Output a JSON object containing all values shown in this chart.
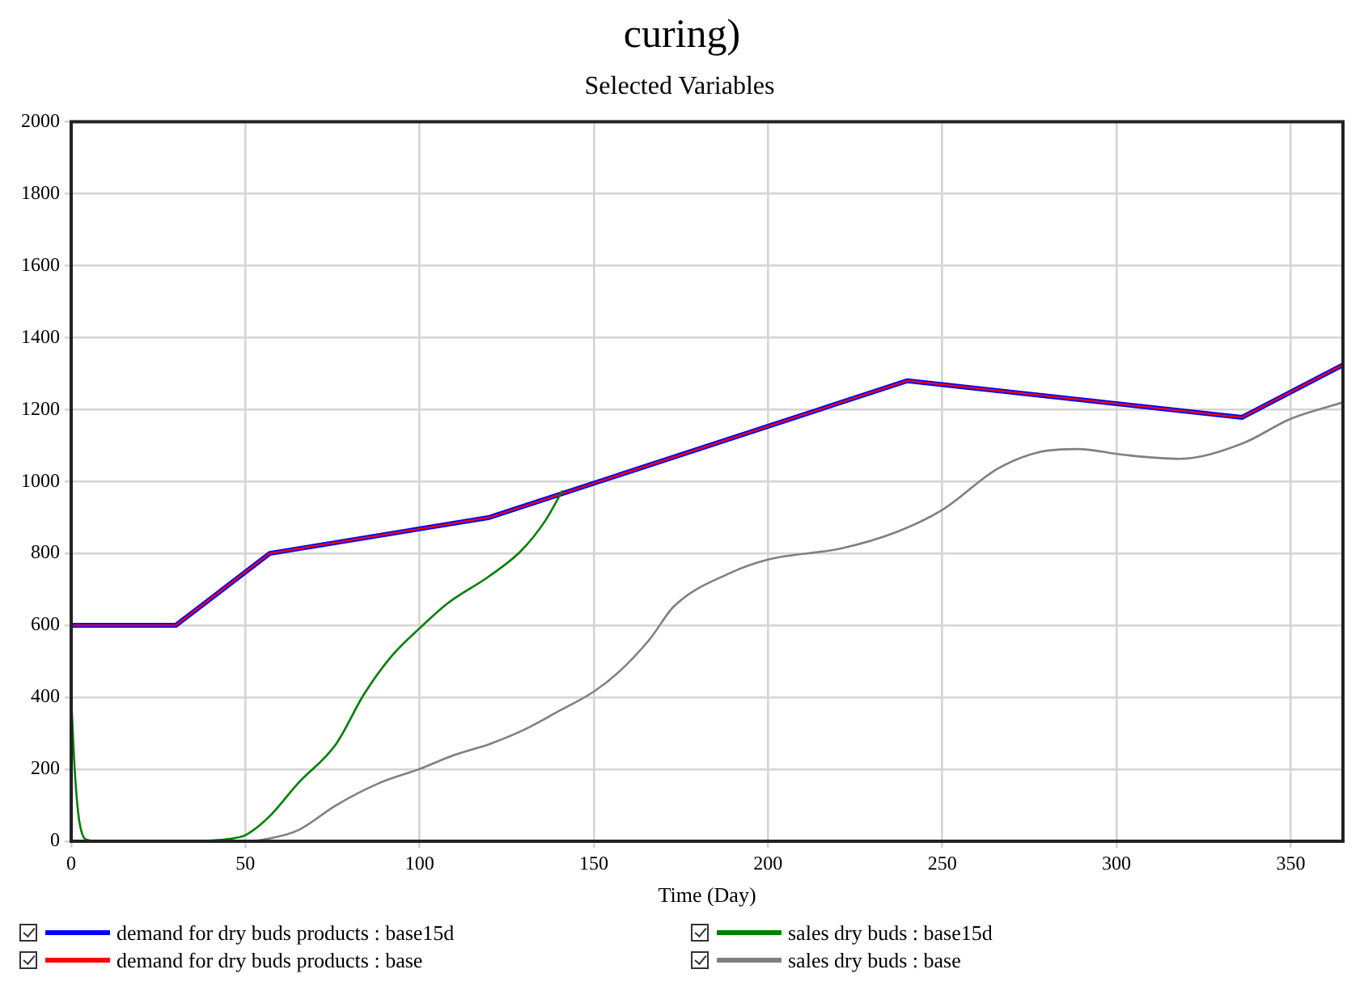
{
  "chart_data": {
    "type": "line",
    "title": "Selected Variables",
    "xlabel": "Time (Day)",
    "annotations": [
      "curing)"
    ],
    "xlim": [
      0,
      365
    ],
    "xticks": [
      0,
      50,
      100,
      150,
      200,
      250,
      300,
      350
    ],
    "ylim": [
      0,
      2000
    ],
    "yticks": [
      0,
      200,
      400,
      600,
      800,
      1000,
      1200,
      1400,
      1600,
      1800,
      2000
    ],
    "grid": true,
    "legend": "bottom",
    "marker": "none",
    "line_style": "solid",
    "series": [
      {
        "name": "demand for dry buds products : base15d",
        "color": "#0000ff",
        "x": [
          0,
          30,
          57,
          120,
          240,
          336,
          365
        ],
        "values": [
          600,
          600,
          800,
          900,
          1280,
          1178,
          1324
        ]
      },
      {
        "name": "demand for dry buds products : base",
        "color": "#ff0000",
        "x": [
          0,
          30,
          57,
          120,
          240,
          336,
          365
        ],
        "values": [
          600,
          600,
          800,
          900,
          1280,
          1178,
          1324
        ]
      },
      {
        "name": "sales dry buds : base15d",
        "color": "#008000",
        "x": [
          0,
          1,
          2,
          3,
          5,
          10,
          30,
          40,
          45,
          50,
          57,
          65,
          76,
          84,
          92,
          100,
          108,
          120,
          129,
          136,
          141
        ],
        "values": [
          400,
          200,
          80,
          25,
          3,
          0,
          0,
          2,
          6,
          17,
          70,
          160,
          270,
          408,
          515,
          592,
          661,
          737,
          806,
          890,
          975
        ]
      },
      {
        "name": "sales dry buds : base",
        "color": "#808080",
        "x": [
          0,
          45,
          50,
          57,
          65,
          76,
          88,
          100,
          110,
          120,
          130,
          140,
          150,
          157,
          166,
          173,
          189,
          200,
          221,
          237,
          250,
          266,
          278,
          289,
          302,
          318,
          336,
          350,
          365
        ],
        "values": [
          0,
          0,
          0,
          8,
          30,
          100,
          160,
          201,
          240,
          270,
          310,
          362,
          416,
          469,
          561,
          653,
          745,
          783,
          814,
          860,
          921,
          1036,
          1082,
          1090,
          1074,
          1063,
          1105,
          1174,
          1220
        ]
      }
    ]
  }
}
